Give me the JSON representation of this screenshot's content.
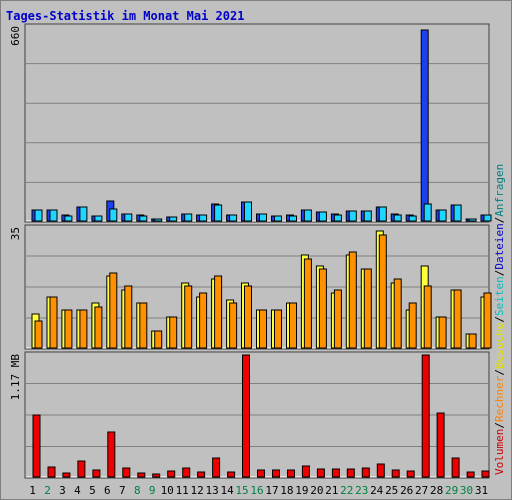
{
  "title": "Tages-Statistik im Monat Mai 2021",
  "colors": {
    "background": "#c0c0c0",
    "grid": "#808080",
    "anfragen": "#1c3ff0",
    "dateien": "#1ed6ff",
    "seiten": "#1ed6ff",
    "besuche": "#ffff3a",
    "rechner": "#ff9000",
    "volumen": "#ee0000",
    "weekday_label": "#000000",
    "weekend_label": "#008040"
  },
  "legend": [
    {
      "text": "Volumen",
      "color": "#cc0000"
    },
    {
      "text": "Rechner",
      "color": "#ff8000"
    },
    {
      "text": "Besuche",
      "color": "#e0e000"
    },
    {
      "text": "Seiten",
      "color": "#00c0c0"
    },
    {
      "text": "Dateien",
      "color": "#0000cc"
    },
    {
      "text": "Anfragen",
      "color": "#008080"
    }
  ],
  "legend_separator": "/",
  "chart_data": [
    {
      "type": "bar",
      "panel": "hits",
      "ymax_label": "660",
      "ylim": [
        0,
        660
      ],
      "categories": [
        "1",
        "2",
        "3",
        "4",
        "5",
        "6",
        "7",
        "8",
        "9",
        "10",
        "11",
        "12",
        "13",
        "14",
        "15",
        "16",
        "17",
        "18",
        "19",
        "20",
        "21",
        "22",
        "23",
        "24",
        "25",
        "26",
        "27",
        "28",
        "29",
        "30",
        "31"
      ],
      "weekend": [
        2,
        8,
        9,
        15,
        16,
        22,
        23,
        29,
        30
      ],
      "series": [
        {
          "name": "Anfragen",
          "values": [
            38,
            38,
            21,
            46,
            17,
            67,
            25,
            21,
            8,
            13,
            25,
            21,
            59,
            21,
            63,
            25,
            17,
            21,
            38,
            30,
            25,
            34,
            34,
            46,
            25,
            21,
            651,
            38,
            55,
            8,
            21
          ]
        },
        {
          "name": "Dateien",
          "values": [
            38,
            38,
            17,
            46,
            17,
            42,
            25,
            17,
            8,
            13,
            25,
            21,
            55,
            21,
            63,
            25,
            17,
            17,
            38,
            30,
            21,
            34,
            34,
            46,
            21,
            17,
            59,
            38,
            55,
            8,
            21
          ]
        }
      ]
    },
    {
      "type": "bar",
      "panel": "visits",
      "ymax_label": "35",
      "ylim": [
        0,
        35
      ],
      "categories": [
        "1",
        "2",
        "3",
        "4",
        "5",
        "6",
        "7",
        "8",
        "9",
        "10",
        "11",
        "12",
        "13",
        "14",
        "15",
        "16",
        "17",
        "18",
        "19",
        "20",
        "21",
        "22",
        "23",
        "24",
        "25",
        "26",
        "27",
        "28",
        "29",
        "30",
        "31"
      ],
      "weekend": [
        2,
        8,
        9,
        15,
        16,
        22,
        23,
        29,
        30
      ],
      "series": [
        {
          "name": "Seiten",
          "values": [
            10,
            15,
            11,
            11,
            13,
            21,
            17,
            13,
            5,
            9,
            19,
            15,
            20,
            14,
            19,
            11,
            11,
            13,
            27,
            24,
            16,
            27,
            23,
            34,
            19,
            11,
            24,
            9,
            17,
            4,
            15
          ]
        },
        {
          "name": "Besuche",
          "values": [
            10,
            15,
            11,
            11,
            13,
            21,
            17,
            13,
            5,
            9,
            19,
            15,
            20,
            14,
            19,
            11,
            11,
            13,
            27,
            24,
            16,
            27,
            23,
            34,
            19,
            11,
            24,
            9,
            17,
            4,
            15
          ]
        },
        {
          "name": "Rechner",
          "values": [
            8,
            15,
            11,
            11,
            12,
            22,
            18,
            13,
            5,
            9,
            18,
            16,
            21,
            13,
            18,
            11,
            11,
            13,
            26,
            23,
            17,
            28,
            23,
            33,
            20,
            13,
            18,
            9,
            17,
            4,
            16
          ]
        }
      ]
    },
    {
      "type": "bar",
      "panel": "volume",
      "ymax_label": "1.17 MB",
      "ylim": [
        0,
        1.17
      ],
      "unit": "MB",
      "categories": [
        "1",
        "2",
        "3",
        "4",
        "5",
        "6",
        "7",
        "8",
        "9",
        "10",
        "11",
        "12",
        "13",
        "14",
        "15",
        "16",
        "17",
        "18",
        "19",
        "20",
        "21",
        "22",
        "23",
        "24",
        "25",
        "26",
        "27",
        "28",
        "29",
        "30",
        "31"
      ],
      "weekend": [
        2,
        8,
        9,
        15,
        16,
        22,
        23,
        29,
        30
      ],
      "series": [
        {
          "name": "Volumen",
          "values": [
            0.59,
            0.1,
            0.04,
            0.15,
            0.07,
            0.43,
            0.09,
            0.04,
            0.03,
            0.06,
            0.09,
            0.05,
            0.18,
            0.05,
            1.17,
            0.07,
            0.07,
            0.07,
            0.11,
            0.08,
            0.08,
            0.08,
            0.09,
            0.12,
            0.07,
            0.06,
            1.17,
            0.61,
            0.18,
            0.05,
            0.06
          ]
        }
      ]
    }
  ]
}
